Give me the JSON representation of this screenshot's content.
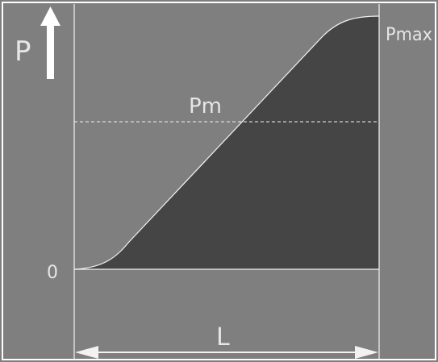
{
  "diagram": {
    "y_axis_label": "P",
    "mean_label": "Pm",
    "max_label": "Pmax",
    "zero_label": "0",
    "length_label": "L",
    "arrow_icon": "arrow-up-icon",
    "colors": {
      "background": "#7f7f7f",
      "filled_area": "#454545",
      "lines": "#f2f2f2"
    }
  }
}
